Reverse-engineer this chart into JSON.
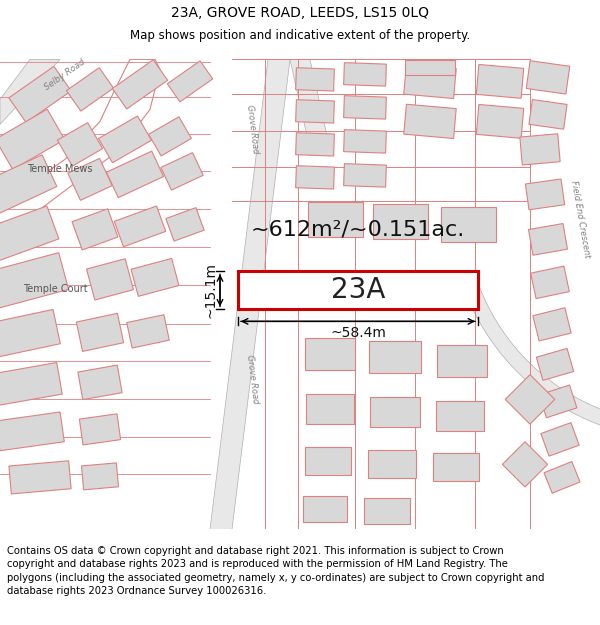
{
  "title_line1": "23A, GROVE ROAD, LEEDS, LS15 0LQ",
  "title_line2": "Map shows position and indicative extent of the property.",
  "footer_text": "Contains OS data © Crown copyright and database right 2021. This information is subject to Crown copyright and database rights 2023 and is reproduced with the permission of HM Land Registry. The polygons (including the associated geometry, namely x, y co-ordinates) are subject to Crown copyright and database rights 2023 Ordnance Survey 100026316.",
  "area_text": "~612m²/~0.151ac.",
  "label_23A": "23A",
  "dim_width": "~58.4m",
  "dim_height": "~15.1m",
  "road_label_1": "Grove Road",
  "road_label_2": "Grove Road",
  "road_label_3": "Selby Road",
  "label_temple_mews": "Temple Mews",
  "label_temple_court": "Temple Court",
  "label_field_end": "Field End Crescent",
  "map_bg": "#f5f5f5",
  "road_fill": "#e0e0e0",
  "building_fill": "#d8d8d8",
  "parcel_edge": "#e08080",
  "road_edge": "#c0c0c0",
  "plot_edge": "#cc0000",
  "plot_fill": "#ffffff",
  "title_fontsize": 10,
  "subtitle_fontsize": 8.5,
  "footer_fontsize": 7.2,
  "area_fontsize": 16,
  "label_fontsize": 20,
  "dim_fontsize": 10
}
